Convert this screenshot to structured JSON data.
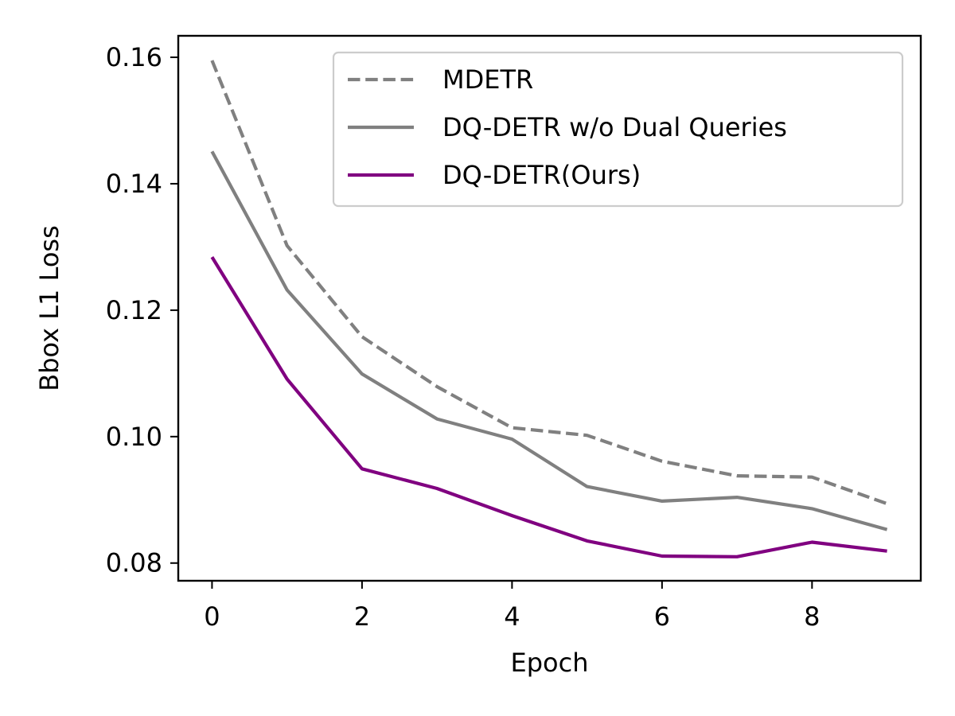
{
  "chart_data": {
    "type": "line",
    "title": "",
    "xlabel": "Epoch",
    "ylabel": "Bbox L1 Loss",
    "x": [
      0,
      1,
      2,
      3,
      4,
      5,
      6,
      7,
      8,
      9
    ],
    "xlim": [
      -0.45,
      9.45
    ],
    "ylim": [
      0.0772,
      0.1634
    ],
    "xticks": [
      0,
      2,
      4,
      6,
      8
    ],
    "xtick_labels": [
      "0",
      "2",
      "4",
      "6",
      "8"
    ],
    "yticks": [
      0.08,
      0.1,
      0.12,
      0.14,
      0.16
    ],
    "ytick_labels": [
      "0.08",
      "0.10",
      "0.12",
      "0.14",
      "0.16"
    ],
    "grid": false,
    "legend_position": "top-right",
    "series": [
      {
        "name": "MDETR",
        "color": "#808080",
        "style": "dashed",
        "values": [
          0.1595,
          0.1302,
          0.1158,
          0.1079,
          0.1014,
          0.1002,
          0.0961,
          0.0938,
          0.0936,
          0.0894
        ]
      },
      {
        "name": "DQ-DETR w/o Dual Queries",
        "color": "#808080",
        "style": "solid",
        "values": [
          0.1451,
          0.1232,
          0.1099,
          0.1028,
          0.0996,
          0.0921,
          0.0898,
          0.0904,
          0.0886,
          0.0853
        ]
      },
      {
        "name": "DQ-DETR(Ours)",
        "color": "#800080",
        "style": "solid",
        "values": [
          0.1284,
          0.1091,
          0.0949,
          0.0918,
          0.0875,
          0.0835,
          0.0811,
          0.081,
          0.0833,
          0.0819
        ]
      }
    ]
  }
}
